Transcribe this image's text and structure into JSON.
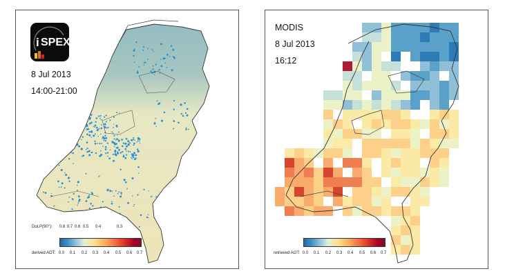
{
  "left_panel": {
    "logo": {
      "text": "SPEX",
      "prefix": "i"
    },
    "date": "8 Jul 2013",
    "time": "14:00-21:00",
    "colorbar": {
      "dolp_label": "DoLP(90°):",
      "dolp_ticks": [
        "0.8",
        "0.7",
        "0.6",
        "0.5",
        "0.4",
        "0.3"
      ],
      "aot_label": "derived AOT:",
      "aot_ticks": [
        "0.0",
        "0.1",
        "0.2",
        "0.3",
        "0.4",
        "0.5",
        "0.6",
        "0.7"
      ]
    }
  },
  "right_panel": {
    "title": "MODIS",
    "date": "8 Jul 2013",
    "time": "16:12",
    "colorbar": {
      "aot_label": "retrieved AOT:",
      "aot_ticks": [
        "0.0",
        "0.1",
        "0.2",
        "0.3",
        "0.4",
        "0.5",
        "0.6",
        "0.7"
      ]
    }
  },
  "colors": {
    "low": "#2166ac",
    "mid": "#fee090",
    "high": "#a50026",
    "spex_dots": "#2b8fd6"
  }
}
